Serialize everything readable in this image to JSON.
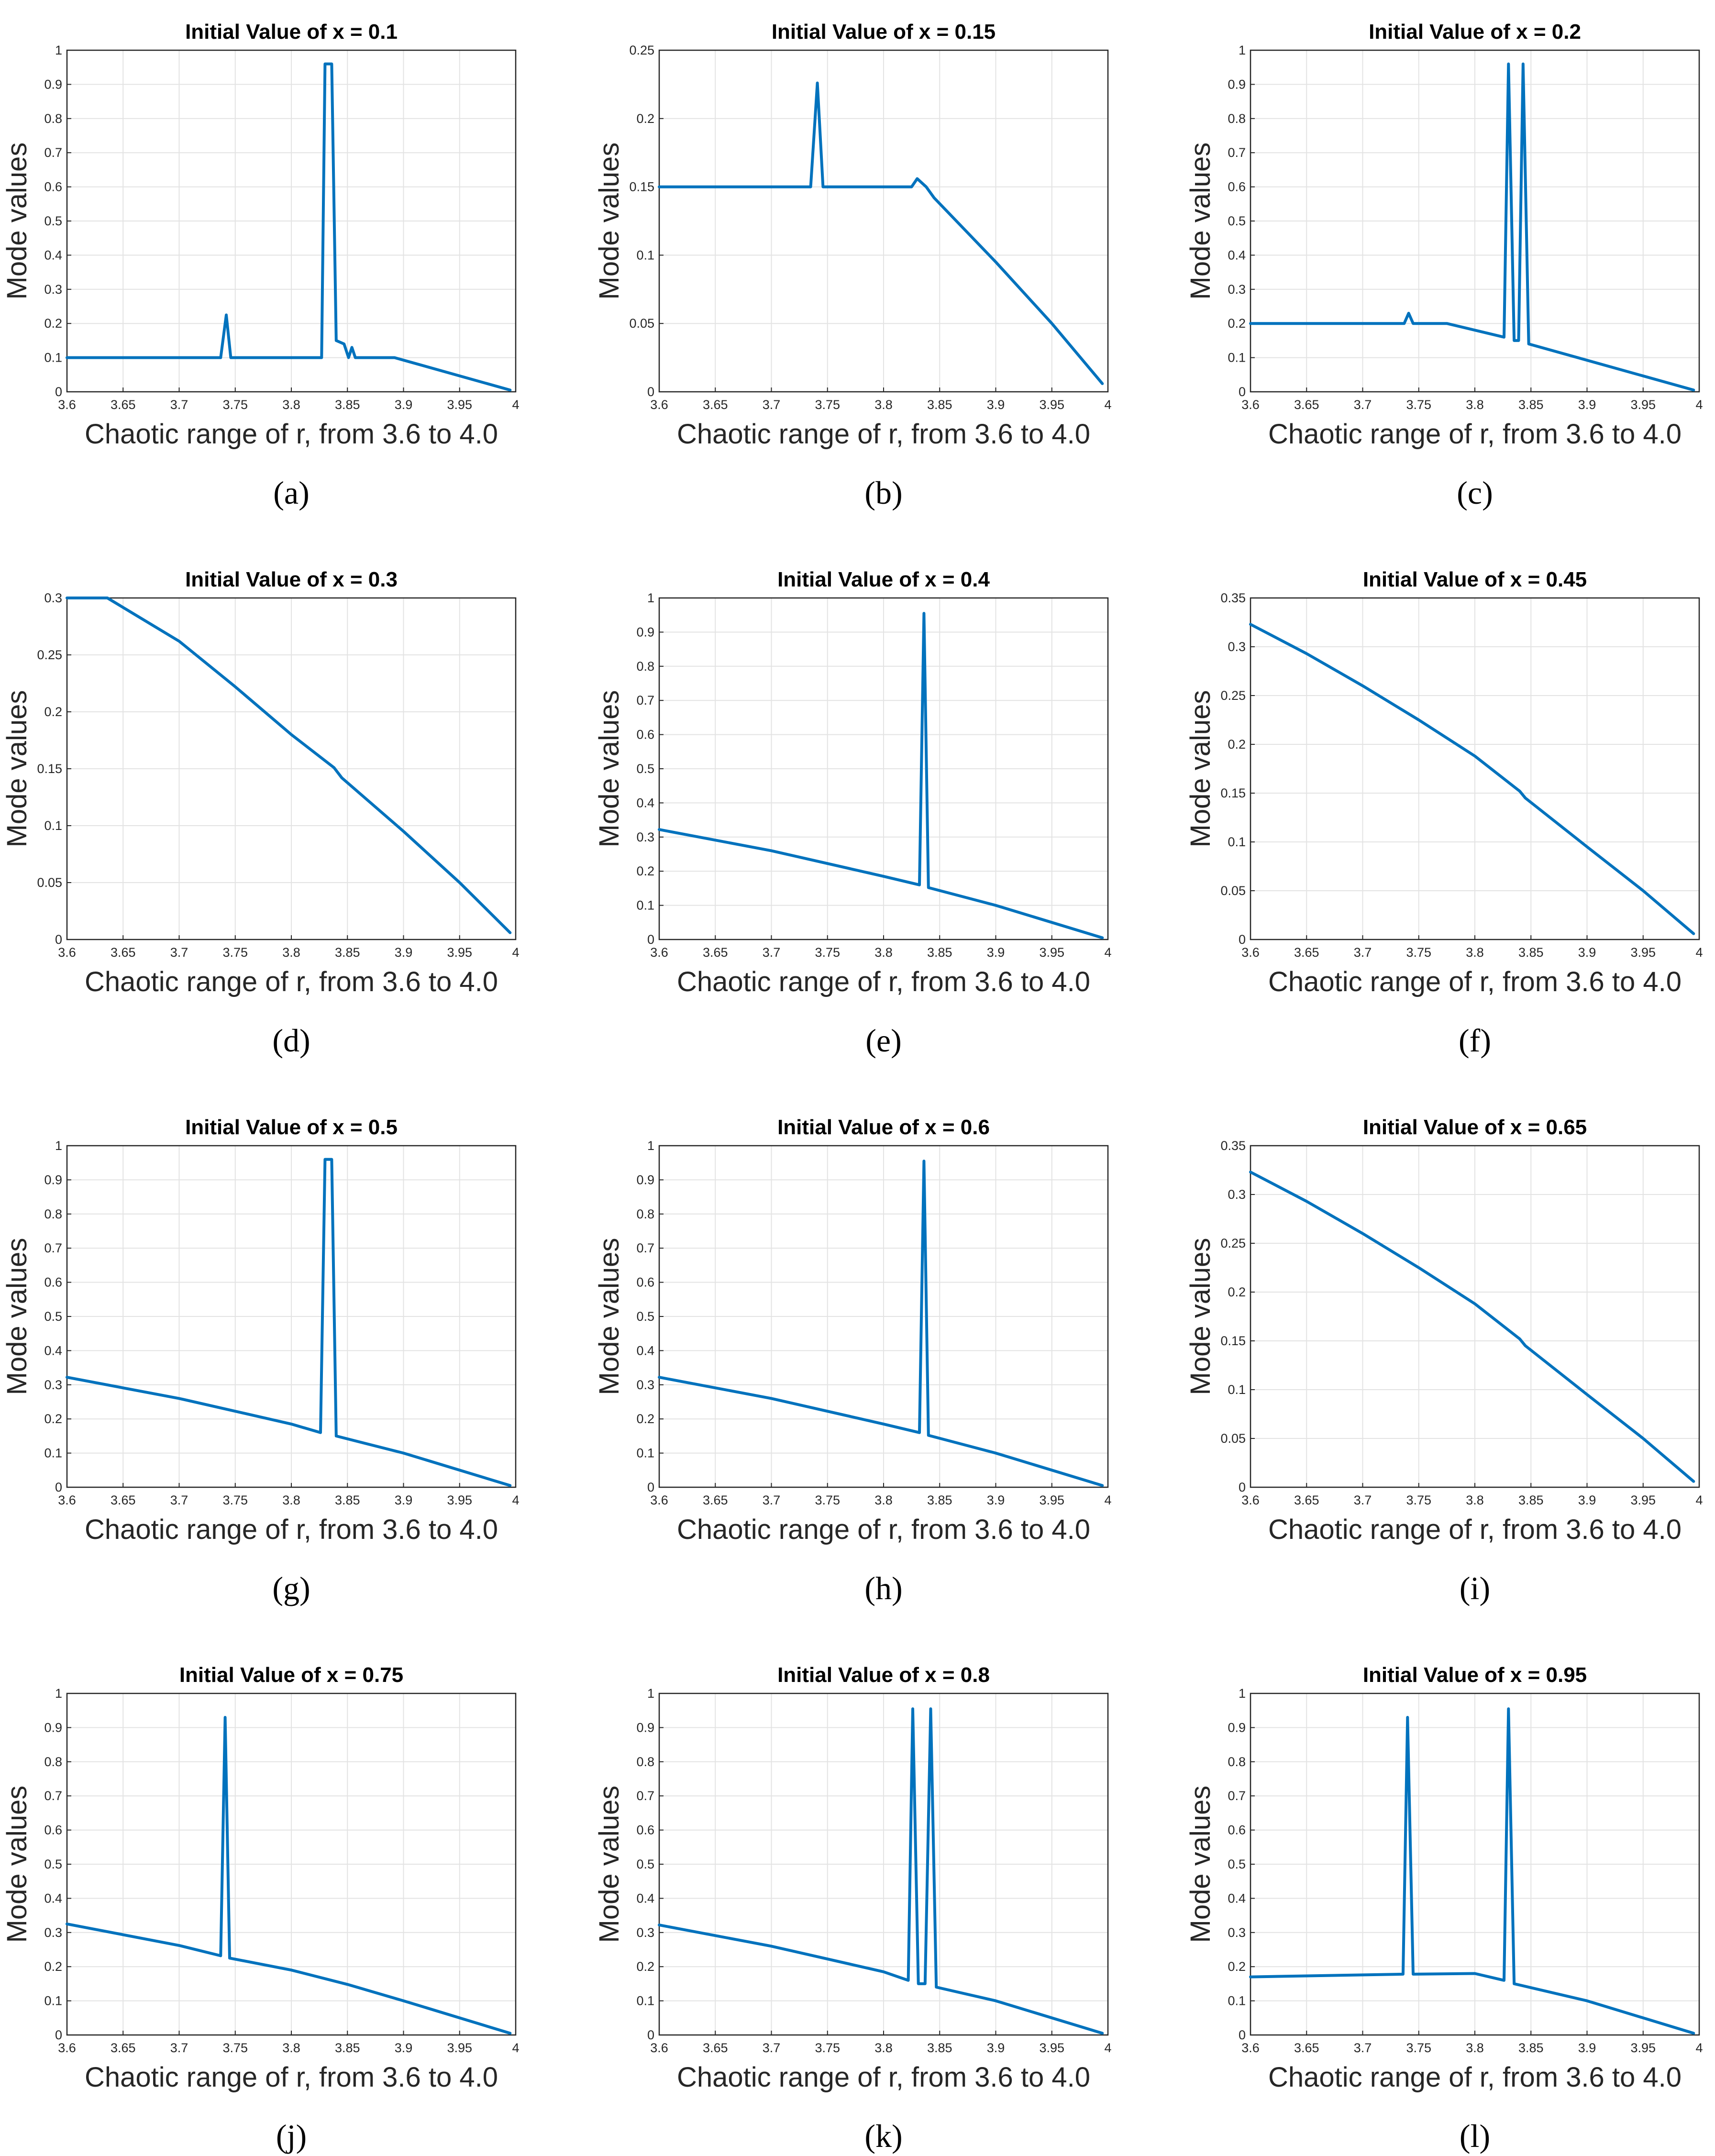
{
  "chart_data": [
    {
      "id": "a",
      "type": "line",
      "title": "Initial Value of x = 0.1",
      "subcaption": "(a)",
      "xlabel": "Chaotic range of r, from 3.6 to 4.0",
      "ylabel": "Mode values",
      "xlim": [
        3.6,
        4.0
      ],
      "ylim": [
        0,
        1
      ],
      "xticks": [
        "3.6",
        "3.65",
        "3.7",
        "3.75",
        "3.8",
        "3.85",
        "3.9",
        "3.95",
        "4"
      ],
      "yticks": [
        "0",
        "0.1",
        "0.2",
        "0.3",
        "0.4",
        "0.5",
        "0.6",
        "0.7",
        "0.8",
        "0.9",
        "1"
      ],
      "series": [
        {
          "name": "mode",
          "x": [
            3.6,
            3.737,
            3.742,
            3.746,
            3.827,
            3.83,
            3.836,
            3.84,
            3.847,
            3.851,
            3.854,
            3.857,
            3.892,
            3.995
          ],
          "y": [
            0.1,
            0.1,
            0.225,
            0.1,
            0.1,
            0.96,
            0.96,
            0.15,
            0.14,
            0.1,
            0.13,
            0.1,
            0.1,
            0.005
          ]
        }
      ]
    },
    {
      "id": "b",
      "type": "line",
      "title": "Initial Value of x = 0.15",
      "subcaption": "(b)",
      "xlabel": "Chaotic range of r, from 3.6 to 4.0",
      "ylabel": "Mode values",
      "xlim": [
        3.6,
        4.0
      ],
      "ylim": [
        0,
        0.25
      ],
      "xticks": [
        "3.6",
        "3.65",
        "3.7",
        "3.75",
        "3.8",
        "3.85",
        "3.9",
        "3.95",
        "4"
      ],
      "yticks": [
        "0",
        "0.05",
        "0.1",
        "0.15",
        "0.2",
        "0.25"
      ],
      "series": [
        {
          "name": "mode",
          "x": [
            3.6,
            3.735,
            3.741,
            3.746,
            3.825,
            3.83,
            3.838,
            3.845,
            3.9,
            3.95,
            3.995
          ],
          "y": [
            0.15,
            0.15,
            0.226,
            0.15,
            0.15,
            0.156,
            0.15,
            0.142,
            0.095,
            0.05,
            0.006
          ]
        }
      ]
    },
    {
      "id": "c",
      "type": "line",
      "title": "Initial Value of x = 0.2",
      "subcaption": "(c)",
      "xlabel": "Chaotic range of r, from 3.6 to 4.0",
      "ylabel": "Mode values",
      "xlim": [
        3.6,
        4.0
      ],
      "ylim": [
        0,
        1
      ],
      "xticks": [
        "3.6",
        "3.65",
        "3.7",
        "3.75",
        "3.8",
        "3.85",
        "3.9",
        "3.95",
        "4"
      ],
      "yticks": [
        "0",
        "0.1",
        "0.2",
        "0.3",
        "0.4",
        "0.5",
        "0.6",
        "0.7",
        "0.8",
        "0.9",
        "1"
      ],
      "series": [
        {
          "name": "mode",
          "x": [
            3.6,
            3.737,
            3.741,
            3.745,
            3.775,
            3.826,
            3.83,
            3.835,
            3.839,
            3.843,
            3.848,
            3.995
          ],
          "y": [
            0.2,
            0.2,
            0.23,
            0.2,
            0.2,
            0.16,
            0.96,
            0.15,
            0.15,
            0.96,
            0.14,
            0.005
          ]
        }
      ]
    },
    {
      "id": "d",
      "type": "line",
      "title": "Initial Value of x = 0.3",
      "subcaption": "(d)",
      "xlabel": "Chaotic range of r, from 3.6 to 4.0",
      "ylabel": "Mode values",
      "xlim": [
        3.6,
        4.0
      ],
      "ylim": [
        0,
        0.3
      ],
      "xticks": [
        "3.6",
        "3.65",
        "3.7",
        "3.75",
        "3.8",
        "3.85",
        "3.9",
        "3.95",
        "4"
      ],
      "yticks": [
        "0",
        "0.05",
        "0.1",
        "0.15",
        "0.2",
        "0.25",
        "0.3"
      ],
      "series": [
        {
          "name": "mode",
          "x": [
            3.6,
            3.636,
            3.7,
            3.75,
            3.8,
            3.838,
            3.845,
            3.9,
            3.95,
            3.995
          ],
          "y": [
            0.3,
            0.3,
            0.262,
            0.222,
            0.18,
            0.151,
            0.142,
            0.095,
            0.05,
            0.006
          ]
        }
      ]
    },
    {
      "id": "e",
      "type": "line",
      "title": "Initial Value of x = 0.4",
      "subcaption": "(e)",
      "xlabel": "Chaotic range of r, from 3.6 to 4.0",
      "ylabel": "Mode values",
      "xlim": [
        3.6,
        4.0
      ],
      "ylim": [
        0,
        1
      ],
      "xticks": [
        "3.6",
        "3.65",
        "3.7",
        "3.75",
        "3.8",
        "3.85",
        "3.9",
        "3.95",
        "4"
      ],
      "yticks": [
        "0",
        "0.1",
        "0.2",
        "0.3",
        "0.4",
        "0.5",
        "0.6",
        "0.7",
        "0.8",
        "0.9",
        "1"
      ],
      "series": [
        {
          "name": "mode",
          "x": [
            3.6,
            3.7,
            3.8,
            3.832,
            3.836,
            3.84,
            3.9,
            3.995
          ],
          "y": [
            0.322,
            0.26,
            0.185,
            0.16,
            0.955,
            0.152,
            0.1,
            0.005
          ]
        }
      ]
    },
    {
      "id": "f",
      "type": "line",
      "title": "Initial Value of x = 0.45",
      "subcaption": "(f)",
      "xlabel": "Chaotic range of r, from 3.6 to 4.0",
      "ylabel": "Mode values",
      "xlim": [
        3.6,
        4.0
      ],
      "ylim": [
        0,
        0.35
      ],
      "xticks": [
        "3.6",
        "3.65",
        "3.7",
        "3.75",
        "3.8",
        "3.85",
        "3.9",
        "3.95",
        "4"
      ],
      "yticks": [
        "0",
        "0.05",
        "0.1",
        "0.15",
        "0.2",
        "0.25",
        "0.3",
        "0.35"
      ],
      "series": [
        {
          "name": "mode",
          "x": [
            3.6,
            3.65,
            3.7,
            3.75,
            3.8,
            3.84,
            3.845,
            3.9,
            3.95,
            3.995
          ],
          "y": [
            0.323,
            0.293,
            0.26,
            0.225,
            0.188,
            0.152,
            0.145,
            0.095,
            0.05,
            0.006
          ]
        }
      ]
    },
    {
      "id": "g",
      "type": "line",
      "title": "Initial Value of x = 0.5",
      "subcaption": "(g)",
      "xlabel": "Chaotic range of r, from 3.6 to 4.0",
      "ylabel": "Mode values",
      "xlim": [
        3.6,
        4.0
      ],
      "ylim": [
        0,
        1
      ],
      "xticks": [
        "3.6",
        "3.65",
        "3.7",
        "3.75",
        "3.8",
        "3.85",
        "3.9",
        "3.95",
        "4"
      ],
      "yticks": [
        "0",
        "0.1",
        "0.2",
        "0.3",
        "0.4",
        "0.5",
        "0.6",
        "0.7",
        "0.8",
        "0.9",
        "1"
      ],
      "series": [
        {
          "name": "mode",
          "x": [
            3.6,
            3.7,
            3.8,
            3.826,
            3.83,
            3.836,
            3.84,
            3.9,
            3.995
          ],
          "y": [
            0.322,
            0.26,
            0.185,
            0.16,
            0.96,
            0.96,
            0.15,
            0.1,
            0.005
          ]
        }
      ]
    },
    {
      "id": "h",
      "type": "line",
      "title": "Initial Value of x = 0.6",
      "subcaption": "(h)",
      "xlabel": "Chaotic range of r, from 3.6 to 4.0",
      "ylabel": "Mode values",
      "xlim": [
        3.6,
        4.0
      ],
      "ylim": [
        0,
        1
      ],
      "xticks": [
        "3.6",
        "3.65",
        "3.7",
        "3.75",
        "3.8",
        "3.85",
        "3.9",
        "3.95",
        "4"
      ],
      "yticks": [
        "0",
        "0.1",
        "0.2",
        "0.3",
        "0.4",
        "0.5",
        "0.6",
        "0.7",
        "0.8",
        "0.9",
        "1"
      ],
      "series": [
        {
          "name": "mode",
          "x": [
            3.6,
            3.7,
            3.8,
            3.832,
            3.836,
            3.84,
            3.9,
            3.995
          ],
          "y": [
            0.322,
            0.26,
            0.185,
            0.16,
            0.955,
            0.152,
            0.1,
            0.005
          ]
        }
      ]
    },
    {
      "id": "i",
      "type": "line",
      "title": "Initial Value of x = 0.65",
      "subcaption": "(i)",
      "xlabel": "Chaotic range of r, from 3.6 to 4.0",
      "ylabel": "Mode values",
      "xlim": [
        3.6,
        4.0
      ],
      "ylim": [
        0,
        0.35
      ],
      "xticks": [
        "3.6",
        "3.65",
        "3.7",
        "3.75",
        "3.8",
        "3.85",
        "3.9",
        "3.95",
        "4"
      ],
      "yticks": [
        "0",
        "0.05",
        "0.1",
        "0.15",
        "0.2",
        "0.25",
        "0.3",
        "0.35"
      ],
      "series": [
        {
          "name": "mode",
          "x": [
            3.6,
            3.65,
            3.7,
            3.75,
            3.8,
            3.84,
            3.845,
            3.9,
            3.95,
            3.995
          ],
          "y": [
            0.323,
            0.293,
            0.26,
            0.225,
            0.188,
            0.152,
            0.145,
            0.095,
            0.05,
            0.006
          ]
        }
      ]
    },
    {
      "id": "j",
      "type": "line",
      "title": "Initial Value of x = 0.75",
      "subcaption": "(j)",
      "xlabel": "Chaotic range of r, from 3.6 to 4.0",
      "ylabel": "Mode values",
      "xlim": [
        3.6,
        4.0
      ],
      "ylim": [
        0,
        1
      ],
      "xticks": [
        "3.6",
        "3.65",
        "3.7",
        "3.75",
        "3.8",
        "3.85",
        "3.9",
        "3.95",
        "4"
      ],
      "yticks": [
        "0",
        "0.1",
        "0.2",
        "0.3",
        "0.4",
        "0.5",
        "0.6",
        "0.7",
        "0.8",
        "0.9",
        "1"
      ],
      "series": [
        {
          "name": "mode",
          "x": [
            3.6,
            3.7,
            3.737,
            3.741,
            3.745,
            3.8,
            3.85,
            3.9,
            3.995
          ],
          "y": [
            0.325,
            0.262,
            0.232,
            0.93,
            0.225,
            0.19,
            0.148,
            0.1,
            0.005
          ]
        }
      ]
    },
    {
      "id": "k",
      "type": "line",
      "title": "Initial Value of x = 0.8",
      "subcaption": "(k)",
      "xlabel": "Chaotic range of r, from 3.6 to 4.0",
      "ylabel": "Mode values",
      "xlim": [
        3.6,
        4.0
      ],
      "ylim": [
        0,
        1
      ],
      "xticks": [
        "3.6",
        "3.65",
        "3.7",
        "3.75",
        "3.8",
        "3.85",
        "3.9",
        "3.95",
        "4"
      ],
      "yticks": [
        "0",
        "0.1",
        "0.2",
        "0.3",
        "0.4",
        "0.5",
        "0.6",
        "0.7",
        "0.8",
        "0.9",
        "1"
      ],
      "series": [
        {
          "name": "mode",
          "x": [
            3.6,
            3.7,
            3.8,
            3.822,
            3.826,
            3.831,
            3.837,
            3.842,
            3.847,
            3.9,
            3.995
          ],
          "y": [
            0.322,
            0.26,
            0.185,
            0.16,
            0.955,
            0.15,
            0.15,
            0.955,
            0.14,
            0.1,
            0.005
          ]
        }
      ]
    },
    {
      "id": "l",
      "type": "line",
      "title": "Initial Value of x = 0.95",
      "subcaption": "(l)",
      "xlabel": "Chaotic range of r, from 3.6 to 4.0",
      "ylabel": "Mode values",
      "xlim": [
        3.6,
        4.0
      ],
      "ylim": [
        0,
        1
      ],
      "xticks": [
        "3.6",
        "3.65",
        "3.7",
        "3.75",
        "3.8",
        "3.85",
        "3.9",
        "3.95",
        "4"
      ],
      "yticks": [
        "0",
        "0.1",
        "0.2",
        "0.3",
        "0.4",
        "0.5",
        "0.6",
        "0.7",
        "0.8",
        "0.9",
        "1"
      ],
      "series": [
        {
          "name": "mode",
          "x": [
            3.6,
            3.736,
            3.74,
            3.745,
            3.8,
            3.826,
            3.83,
            3.835,
            3.9,
            3.995
          ],
          "y": [
            0.17,
            0.178,
            0.93,
            0.178,
            0.18,
            0.16,
            0.955,
            0.15,
            0.1,
            0.005
          ]
        }
      ]
    }
  ]
}
